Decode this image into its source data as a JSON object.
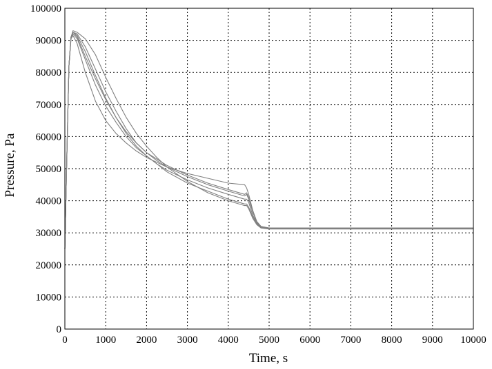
{
  "chart_data": {
    "type": "line",
    "xlabel": "Time, s",
    "ylabel": "Pressure, Pa",
    "xlim": [
      0,
      10000
    ],
    "ylim": [
      0,
      100000
    ],
    "xticks": [
      0,
      1000,
      2000,
      3000,
      4000,
      5000,
      6000,
      7000,
      8000,
      9000,
      10000
    ],
    "yticks": [
      0,
      10000,
      20000,
      30000,
      40000,
      50000,
      60000,
      70000,
      80000,
      90000,
      100000
    ],
    "grid": true,
    "line_color": "#808080",
    "series": [
      {
        "x": [
          0,
          50,
          100,
          150,
          200,
          300,
          500,
          750,
          1000,
          1250,
          1500,
          1750,
          2000,
          2250,
          2500,
          3000,
          3500,
          4000,
          4400,
          4450,
          4500,
          4600,
          4700,
          4800,
          5000,
          6000,
          7000,
          8000,
          9000,
          10000
        ],
        "y": [
          25000,
          55000,
          82000,
          91000,
          92500,
          92000,
          88000,
          81000,
          74000,
          68000,
          62500,
          58000,
          55000,
          52500,
          50500,
          47500,
          45000,
          43000,
          41500,
          42000,
          40500,
          36500,
          33500,
          32000,
          31500,
          31500,
          31500,
          31500,
          31500,
          31500
        ]
      },
      {
        "x": [
          0,
          50,
          100,
          150,
          200,
          300,
          500,
          750,
          1000,
          1250,
          1500,
          1750,
          2000,
          2250,
          2500,
          3000,
          3500,
          4000,
          4400,
          4450,
          4500,
          4600,
          4700,
          4800,
          5000,
          6000,
          7000,
          8000,
          9000,
          10000
        ],
        "y": [
          25000,
          55000,
          82000,
          90500,
          91500,
          89000,
          80000,
          71000,
          65000,
          61000,
          58000,
          55500,
          53500,
          52000,
          50500,
          48500,
          47000,
          45500,
          45000,
          44000,
          42000,
          37000,
          33500,
          32000,
          31500,
          31500,
          31500,
          31500,
          31500,
          31500
        ]
      },
      {
        "x": [
          0,
          50,
          100,
          150,
          200,
          300,
          500,
          750,
          1000,
          1250,
          1500,
          1750,
          2000,
          2250,
          2500,
          3000,
          3500,
          4000,
          4400,
          4450,
          4500,
          4600,
          4700,
          4800,
          5000,
          6000,
          7000,
          8000,
          9000,
          10000
        ],
        "y": [
          25000,
          55000,
          82000,
          91000,
          93000,
          92500,
          90500,
          85500,
          78500,
          72000,
          66000,
          61000,
          57000,
          53500,
          50500,
          46000,
          42500,
          40000,
          38500,
          38500,
          37500,
          34500,
          32500,
          31500,
          31200,
          31200,
          31200,
          31200,
          31200,
          31200
        ]
      },
      {
        "x": [
          0,
          50,
          100,
          150,
          200,
          300,
          500,
          750,
          1000,
          1250,
          1500,
          1750,
          2000,
          2250,
          2500,
          3000,
          3500,
          4000,
          4400,
          4450,
          4500,
          4600,
          4700,
          4800,
          5000,
          6000,
          7000,
          8000,
          9000,
          10000
        ],
        "y": [
          25000,
          55000,
          82000,
          90500,
          92000,
          90500,
          84000,
          76000,
          69500,
          64500,
          60000,
          56500,
          54000,
          51500,
          49500,
          46500,
          44000,
          42000,
          40500,
          40500,
          39500,
          35500,
          33000,
          31800,
          31300,
          31300,
          31300,
          31300,
          31300,
          31300
        ]
      },
      {
        "x": [
          0,
          50,
          100,
          150,
          200,
          300,
          500,
          750,
          1000,
          1250,
          1500,
          1750,
          2000,
          2250,
          2500,
          3000,
          3500,
          4000,
          4400,
          4450,
          4500,
          4600,
          4700,
          4800,
          5000,
          6000,
          7000,
          8000,
          9000,
          10000
        ],
        "y": [
          25000,
          55000,
          82000,
          91000,
          92500,
          91500,
          86500,
          79000,
          72000,
          66000,
          61000,
          57000,
          54000,
          51500,
          49000,
          45500,
          43000,
          40500,
          39000,
          39000,
          38000,
          35000,
          32800,
          31600,
          31200,
          31200,
          31200,
          31200,
          31200,
          31200
        ]
      },
      {
        "x": [
          0,
          50,
          100,
          150,
          200,
          300,
          500,
          750,
          1000,
          1250,
          1500,
          1750,
          2000,
          2250,
          2500,
          3000,
          3500,
          4000,
          4400,
          4450,
          4500,
          4600,
          4700,
          4800,
          5000,
          6000,
          7000,
          8000,
          9000,
          10000
        ],
        "y": [
          25000,
          55000,
          82000,
          91000,
          92500,
          91000,
          85000,
          78000,
          71500,
          66000,
          61500,
          58000,
          55000,
          53000,
          51000,
          48000,
          45500,
          43500,
          42000,
          42500,
          41000,
          36500,
          33200,
          31900,
          31400,
          31400,
          31400,
          31400,
          31400,
          31400
        ]
      }
    ]
  }
}
